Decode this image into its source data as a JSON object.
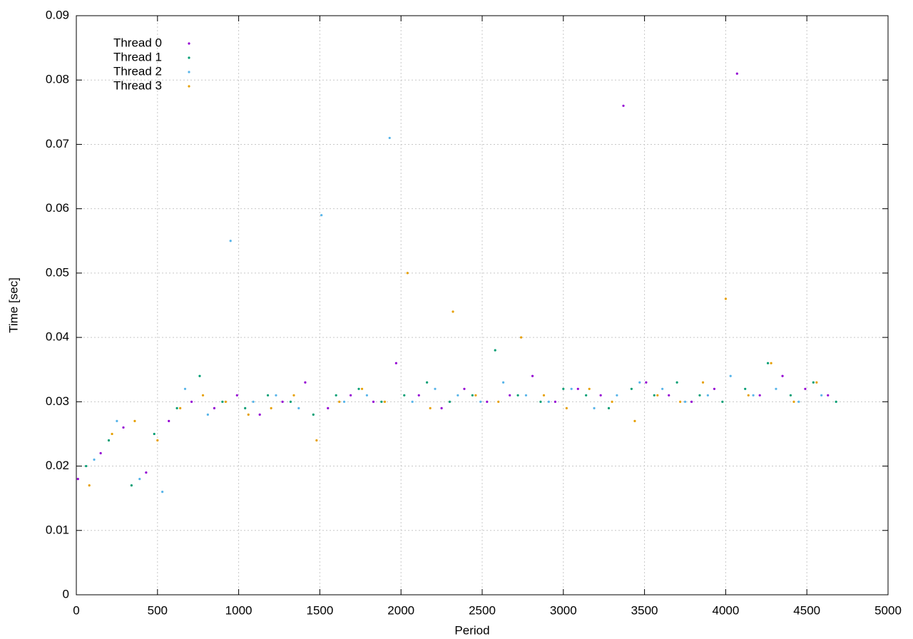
{
  "chart_data": {
    "type": "scatter",
    "xlabel": "Period",
    "ylabel": "Time [sec]",
    "xlim": [
      0,
      5000
    ],
    "xticks": [
      0,
      500,
      1000,
      1500,
      2000,
      2500,
      3000,
      3500,
      4000,
      4500,
      5000
    ],
    "ylim": [
      0,
      0.09
    ],
    "yticks": [
      0,
      0.01,
      0.02,
      0.03,
      0.04,
      0.05,
      0.06,
      0.07,
      0.08,
      0.09
    ],
    "grid": true,
    "legend": "top-left",
    "series": [
      {
        "name": "Thread 0",
        "color": "#9400d3",
        "x": [
          10,
          150,
          290,
          430,
          570,
          710,
          850,
          990,
          1130,
          1270,
          1410,
          1550,
          1690,
          1830,
          1970,
          2110,
          2250,
          2390,
          2530,
          2670,
          2810,
          2950,
          3090,
          3230,
          3370,
          3510,
          3650,
          3790,
          3930,
          4070,
          4210,
          4350,
          4490,
          4630
        ],
        "values": [
          0.018,
          0.022,
          0.026,
          0.019,
          0.027,
          0.03,
          0.029,
          0.031,
          0.028,
          0.03,
          0.033,
          0.029,
          0.031,
          0.03,
          0.036,
          0.031,
          0.029,
          0.032,
          0.03,
          0.031,
          0.034,
          0.03,
          0.032,
          0.031,
          0.076,
          0.033,
          0.031,
          0.03,
          0.032,
          0.081,
          0.031,
          0.034,
          0.032,
          0.031
        ]
      },
      {
        "name": "Thread 1",
        "color": "#009e73",
        "x": [
          60,
          200,
          340,
          480,
          620,
          760,
          900,
          1040,
          1180,
          1320,
          1460,
          1600,
          1740,
          1880,
          2020,
          2160,
          2300,
          2440,
          2580,
          2720,
          2860,
          3000,
          3140,
          3280,
          3420,
          3560,
          3700,
          3840,
          3980,
          4120,
          4260,
          4400,
          4540,
          4680
        ],
        "values": [
          0.02,
          0.024,
          0.017,
          0.025,
          0.029,
          0.034,
          0.03,
          0.029,
          0.031,
          0.03,
          0.028,
          0.031,
          0.032,
          0.03,
          0.031,
          0.033,
          0.03,
          0.031,
          0.038,
          0.031,
          0.03,
          0.032,
          0.031,
          0.029,
          0.032,
          0.031,
          0.033,
          0.031,
          0.03,
          0.032,
          0.036,
          0.031,
          0.033,
          0.03
        ]
      },
      {
        "name": "Thread 2",
        "color": "#56b4e9",
        "x": [
          110,
          250,
          390,
          530,
          670,
          810,
          950,
          1090,
          1230,
          1370,
          1510,
          1650,
          1790,
          1930,
          2070,
          2210,
          2350,
          2490,
          2630,
          2770,
          2910,
          3050,
          3190,
          3330,
          3470,
          3610,
          3750,
          3890,
          4030,
          4170,
          4310,
          4450,
          4590
        ],
        "values": [
          0.021,
          0.027,
          0.018,
          0.016,
          0.032,
          0.028,
          0.055,
          0.03,
          0.031,
          0.029,
          0.059,
          0.03,
          0.031,
          0.071,
          0.03,
          0.032,
          0.031,
          0.03,
          0.033,
          0.031,
          0.03,
          0.032,
          0.029,
          0.031,
          0.033,
          0.032,
          0.03,
          0.031,
          0.034,
          0.031,
          0.032,
          0.03,
          0.031
        ]
      },
      {
        "name": "Thread 3",
        "color": "#e69f00",
        "x": [
          80,
          220,
          360,
          500,
          640,
          780,
          920,
          1060,
          1200,
          1340,
          1480,
          1620,
          1760,
          1900,
          2040,
          2180,
          2320,
          2460,
          2600,
          2740,
          2880,
          3020,
          3160,
          3300,
          3440,
          3580,
          3720,
          3860,
          4000,
          4140,
          4280,
          4420,
          4560
        ],
        "values": [
          0.017,
          0.025,
          0.027,
          0.024,
          0.029,
          0.031,
          0.03,
          0.028,
          0.029,
          0.031,
          0.024,
          0.03,
          0.032,
          0.03,
          0.05,
          0.029,
          0.044,
          0.031,
          0.03,
          0.04,
          0.031,
          0.029,
          0.032,
          0.03,
          0.027,
          0.031,
          0.03,
          0.033,
          0.046,
          0.031,
          0.036,
          0.03,
          0.033
        ]
      }
    ]
  }
}
